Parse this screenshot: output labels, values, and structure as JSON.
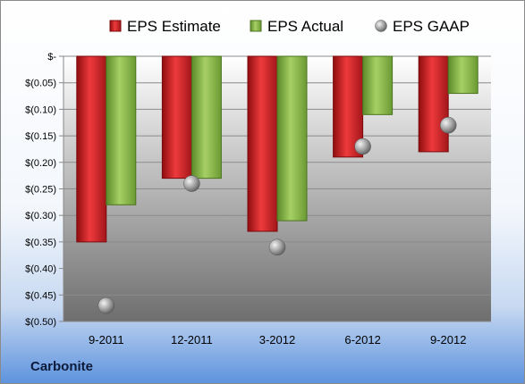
{
  "company": "Carbonite",
  "colors": {
    "estimate": "#e0262a",
    "actual": "#8dbf4a",
    "gaap": "#9a9a9a"
  },
  "chart_data": {
    "type": "bar",
    "categories": [
      "9-2011",
      "12-2011",
      "3-2012",
      "6-2012",
      "9-2012"
    ],
    "series": [
      {
        "name": "EPS Estimate",
        "values": [
          -0.35,
          -0.23,
          -0.33,
          -0.19,
          -0.18
        ]
      },
      {
        "name": "EPS Actual",
        "values": [
          -0.28,
          -0.23,
          -0.31,
          -0.11,
          -0.07
        ]
      },
      {
        "name": "EPS GAAP",
        "values": [
          -0.47,
          -0.24,
          -0.36,
          -0.17,
          -0.13
        ],
        "mark": "sphere"
      }
    ],
    "ylim": [
      -0.5,
      0
    ],
    "yticks": [
      0,
      -0.05,
      -0.1,
      -0.15,
      -0.2,
      -0.25,
      -0.3,
      -0.35,
      -0.4,
      -0.45,
      -0.5
    ],
    "ytick_labels": [
      "$-",
      "$(0.05)",
      "$(0.10)",
      "$(0.15)",
      "$(0.20)",
      "$(0.25)",
      "$(0.30)",
      "$(0.35)",
      "$(0.40)",
      "$(0.45)",
      "$(0.50)"
    ],
    "legend_position": "top",
    "grid": true
  }
}
